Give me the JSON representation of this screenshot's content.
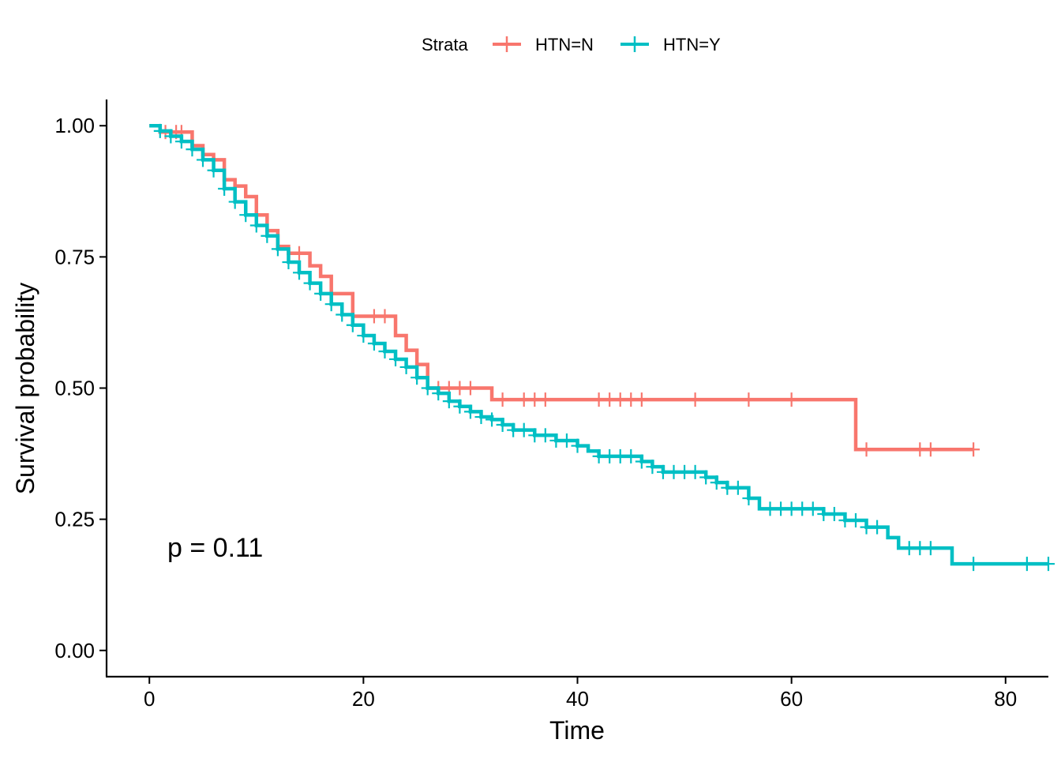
{
  "chart_data": {
    "type": "line",
    "subtype": "kaplan-meier-step",
    "xlabel": "Time",
    "ylabel": "Survival probability",
    "xlim": [
      -4,
      84
    ],
    "ylim": [
      -0.05,
      1.05
    ],
    "xticks": [
      0,
      20,
      40,
      60,
      80
    ],
    "yticks": [
      0.0,
      0.25,
      0.5,
      0.75,
      1.0
    ],
    "xtick_labels": [
      "0",
      "20",
      "40",
      "60",
      "80"
    ],
    "ytick_labels": [
      "0.00",
      "0.25",
      "0.50",
      "0.75",
      "1.00"
    ],
    "grid": false,
    "legend": {
      "title": "Strata",
      "position": "top",
      "entries": [
        "HTN=N",
        "HTN=Y"
      ]
    },
    "annotation": "p = 0.11",
    "series": [
      {
        "name": "HTN=N",
        "color": "#F8766D",
        "steps": [
          [
            0,
            1.0
          ],
          [
            1,
            0.988
          ],
          [
            4,
            0.962
          ],
          [
            5,
            0.945
          ],
          [
            6,
            0.935
          ],
          [
            7,
            0.897
          ],
          [
            8,
            0.885
          ],
          [
            9,
            0.865
          ],
          [
            10,
            0.83
          ],
          [
            11,
            0.8
          ],
          [
            12,
            0.77
          ],
          [
            13,
            0.757
          ],
          [
            15,
            0.733
          ],
          [
            16,
            0.713
          ],
          [
            17,
            0.68
          ],
          [
            19,
            0.637
          ],
          [
            23,
            0.6
          ],
          [
            24,
            0.572
          ],
          [
            25,
            0.545
          ],
          [
            26,
            0.5
          ],
          [
            32,
            0.478
          ],
          [
            66,
            0.383
          ],
          [
            77,
            0.383
          ]
        ],
        "censor_times": [
          1.5,
          2.5,
          3,
          14,
          21,
          22,
          27,
          28,
          29,
          30,
          33,
          35,
          36,
          37,
          42,
          43,
          44,
          45,
          46,
          51,
          56,
          60,
          67,
          72,
          73,
          77
        ]
      },
      {
        "name": "HTN=Y",
        "color": "#00BFC4",
        "steps": [
          [
            0,
            1.0
          ],
          [
            1,
            0.99
          ],
          [
            2,
            0.98
          ],
          [
            3,
            0.97
          ],
          [
            4,
            0.955
          ],
          [
            5,
            0.935
          ],
          [
            6,
            0.915
          ],
          [
            7,
            0.88
          ],
          [
            8,
            0.855
          ],
          [
            9,
            0.83
          ],
          [
            10,
            0.81
          ],
          [
            11,
            0.79
          ],
          [
            12,
            0.765
          ],
          [
            13,
            0.74
          ],
          [
            14,
            0.72
          ],
          [
            15,
            0.7
          ],
          [
            16,
            0.68
          ],
          [
            17,
            0.66
          ],
          [
            18,
            0.64
          ],
          [
            19,
            0.62
          ],
          [
            20,
            0.6
          ],
          [
            21,
            0.585
          ],
          [
            22,
            0.57
          ],
          [
            23,
            0.555
          ],
          [
            24,
            0.54
          ],
          [
            25,
            0.52
          ],
          [
            26,
            0.5
          ],
          [
            27,
            0.49
          ],
          [
            28,
            0.475
          ],
          [
            29,
            0.465
          ],
          [
            30,
            0.455
          ],
          [
            31,
            0.445
          ],
          [
            32,
            0.44
          ],
          [
            33,
            0.43
          ],
          [
            34,
            0.42
          ],
          [
            36,
            0.41
          ],
          [
            38,
            0.4
          ],
          [
            40,
            0.39
          ],
          [
            41,
            0.38
          ],
          [
            42,
            0.37
          ],
          [
            46,
            0.36
          ],
          [
            47,
            0.35
          ],
          [
            48,
            0.34
          ],
          [
            52,
            0.33
          ],
          [
            53,
            0.32
          ],
          [
            54,
            0.31
          ],
          [
            56,
            0.29
          ],
          [
            57,
            0.27
          ],
          [
            63,
            0.26
          ],
          [
            65,
            0.248
          ],
          [
            67,
            0.235
          ],
          [
            69,
            0.215
          ],
          [
            70,
            0.195
          ],
          [
            75,
            0.165
          ],
          [
            84,
            0.165
          ]
        ],
        "censor_times": [
          1,
          2,
          3,
          4,
          5,
          6,
          7,
          8,
          9,
          10,
          11,
          12,
          13,
          14,
          15,
          16,
          17,
          18,
          19,
          20,
          21,
          22,
          23,
          24,
          25,
          26,
          27,
          28,
          29,
          30,
          31,
          32,
          33,
          34,
          35,
          36,
          37,
          38,
          39,
          40,
          42,
          43,
          44,
          45,
          46,
          47,
          48,
          49,
          50,
          51,
          52,
          53,
          54,
          55,
          56,
          58,
          59,
          60,
          61,
          62,
          63,
          64,
          65,
          66,
          67,
          68,
          71,
          72,
          73,
          77,
          82,
          84
        ]
      }
    ]
  }
}
